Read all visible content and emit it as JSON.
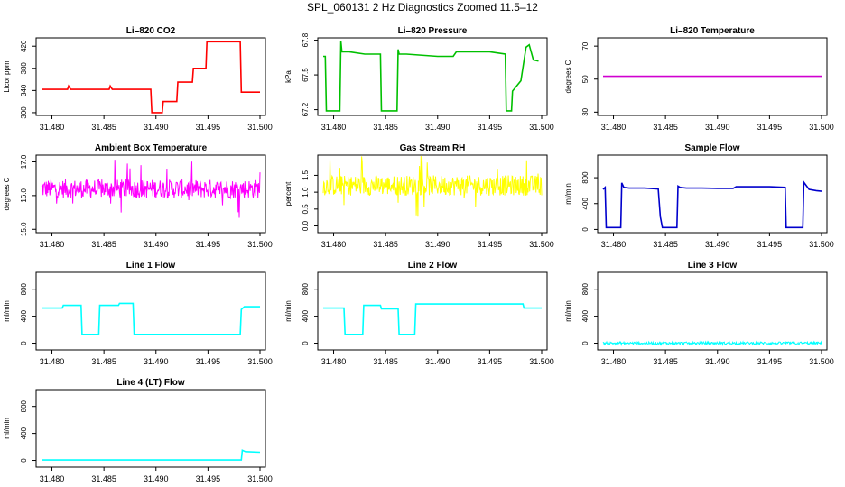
{
  "title": "SPL_060131  2 Hz Diagnostics Zoomed 11.5–12",
  "x_ticks": [
    "31.480",
    "31.485",
    "31.490",
    "31.495",
    "31.500"
  ],
  "chart_data": [
    {
      "type": "line",
      "title": "Li–820 CO2",
      "ylabel": "Licor ppm",
      "color": "#ff0000",
      "xlim": [
        31.479,
        31.5
      ],
      "ylim": [
        295,
        435
      ],
      "yticks": [
        300,
        340,
        380,
        420
      ],
      "x": [
        31.479,
        31.4815,
        31.4816,
        31.4818,
        31.4855,
        31.4856,
        31.4858,
        31.4895,
        31.4896,
        31.4906,
        31.4907,
        31.492,
        31.4921,
        31.4935,
        31.4936,
        31.4948,
        31.4949,
        31.4981,
        31.4982,
        31.5
      ],
      "y": [
        342,
        342,
        348,
        342,
        342,
        348,
        342,
        342,
        300,
        300,
        320,
        320,
        355,
        355,
        380,
        380,
        428,
        428,
        337,
        337
      ]
    },
    {
      "type": "line",
      "title": "Li–820 Pressure",
      "ylabel": "kPa",
      "color": "#00c000",
      "xlim": [
        31.479,
        31.5
      ],
      "ylim": [
        67.15,
        67.82
      ],
      "yticks": [
        67.2,
        67.5,
        67.8
      ],
      "x": [
        31.479,
        31.4792,
        31.4793,
        31.4806,
        31.4807,
        31.4808,
        31.4815,
        31.483,
        31.4845,
        31.4846,
        31.4861,
        31.4862,
        31.4863,
        31.487,
        31.49,
        31.4915,
        31.4918,
        31.495,
        31.4965,
        31.4966,
        31.4971,
        31.4972,
        31.498,
        31.4985,
        31.4988,
        31.4992,
        31.4997
      ],
      "y": [
        67.66,
        67.66,
        67.19,
        67.19,
        67.79,
        67.7,
        67.7,
        67.68,
        67.68,
        67.19,
        67.19,
        67.72,
        67.68,
        67.68,
        67.66,
        67.66,
        67.7,
        67.7,
        67.68,
        67.19,
        67.19,
        67.36,
        67.45,
        67.74,
        67.76,
        67.63,
        67.62
      ]
    },
    {
      "type": "line",
      "title": "Li–820 Temperature",
      "ylabel": "degrees C",
      "color": "#d000d0",
      "xlim": [
        31.479,
        31.5
      ],
      "ylim": [
        28,
        75
      ],
      "yticks": [
        30,
        50,
        70
      ],
      "x": [
        31.479,
        31.5
      ],
      "y": [
        51.7,
        51.7
      ]
    },
    {
      "type": "line",
      "title": "Ambient Box Temperature",
      "ylabel": "degrees C",
      "color": "#ff00ff",
      "xlim": [
        31.479,
        31.5
      ],
      "ylim": [
        14.9,
        17.2
      ],
      "yticks": [
        15.0,
        16.0,
        17.0
      ],
      "noise": {
        "center": 16.2,
        "spread": 0.28,
        "spikes": 0.6
      },
      "x": [],
      "y": []
    },
    {
      "type": "line",
      "title": "Gas Stream RH",
      "ylabel": "percent",
      "color": "#ffff00",
      "xlim": [
        31.479,
        31.5
      ],
      "ylim": [
        -0.2,
        2.1
      ],
      "yticks": [
        0.0,
        0.5,
        1.0,
        1.5
      ],
      "noise": {
        "center": 1.2,
        "spread": 0.3,
        "spikes": 0.7
      },
      "x": [],
      "y": []
    },
    {
      "type": "line",
      "title": "Sample Flow",
      "ylabel": "ml/min",
      "color": "#0000cc",
      "xlim": [
        31.479,
        31.5
      ],
      "ylim": [
        -50,
        1150
      ],
      "yticks": [
        0,
        400,
        800
      ],
      "x": [
        31.479,
        31.4792,
        31.4793,
        31.4807,
        31.4808,
        31.481,
        31.4815,
        31.483,
        31.4843,
        31.4845,
        31.4847,
        31.4861,
        31.4862,
        31.4864,
        31.487,
        31.4885,
        31.49,
        31.4915,
        31.4918,
        31.495,
        31.4965,
        31.4966,
        31.4982,
        31.4983,
        31.4988,
        31.4995,
        31.5
      ],
      "y": [
        620,
        650,
        30,
        30,
        720,
        650,
        640,
        640,
        625,
        200,
        30,
        30,
        670,
        650,
        640,
        640,
        635,
        635,
        660,
        660,
        650,
        30,
        30,
        730,
        620,
        600,
        590
      ]
    },
    {
      "type": "line",
      "title": "Line 1 Flow",
      "ylabel": "ml/min",
      "color": "#00ffff",
      "xlim": [
        31.479,
        31.5
      ],
      "ylim": [
        -100,
        1050
      ],
      "yticks": [
        0,
        400,
        800
      ],
      "x": [
        31.479,
        31.481,
        31.4811,
        31.4828,
        31.4829,
        31.4845,
        31.4846,
        31.4864,
        31.4865,
        31.4878,
        31.4879,
        31.4981,
        31.4982,
        31.4985,
        31.5
      ],
      "y": [
        520,
        520,
        560,
        560,
        130,
        130,
        560,
        560,
        590,
        590,
        130,
        130,
        500,
        540,
        540
      ]
    },
    {
      "type": "line",
      "title": "Line 2 Flow",
      "ylabel": "ml/min",
      "color": "#00ffff",
      "xlim": [
        31.479,
        31.5
      ],
      "ylim": [
        -100,
        1050
      ],
      "yticks": [
        0,
        400,
        800
      ],
      "x": [
        31.479,
        31.481,
        31.4811,
        31.4828,
        31.4829,
        31.4845,
        31.4846,
        31.4862,
        31.4863,
        31.4878,
        31.4879,
        31.4982,
        31.4983,
        31.5
      ],
      "y": [
        520,
        520,
        130,
        130,
        560,
        560,
        510,
        510,
        130,
        130,
        580,
        580,
        520,
        520
      ]
    },
    {
      "type": "line",
      "title": "Line 3 Flow",
      "ylabel": "ml/min",
      "color": "#00ffff",
      "xlim": [
        31.479,
        31.5
      ],
      "ylim": [
        -100,
        1050
      ],
      "yticks": [
        0,
        400,
        800
      ],
      "noise": {
        "center": 0,
        "spread": 20,
        "spikes": 0.1
      },
      "x": [],
      "y": []
    },
    {
      "type": "line",
      "title": "Line 4 (LT) Flow",
      "ylabel": "ml/min",
      "color": "#00ffff",
      "xlim": [
        31.479,
        31.5
      ],
      "ylim": [
        -100,
        1050
      ],
      "yticks": [
        0,
        400,
        800
      ],
      "x": [
        31.479,
        31.4982,
        31.4983,
        31.4986,
        31.5
      ],
      "y": [
        5,
        5,
        150,
        130,
        120
      ]
    }
  ]
}
